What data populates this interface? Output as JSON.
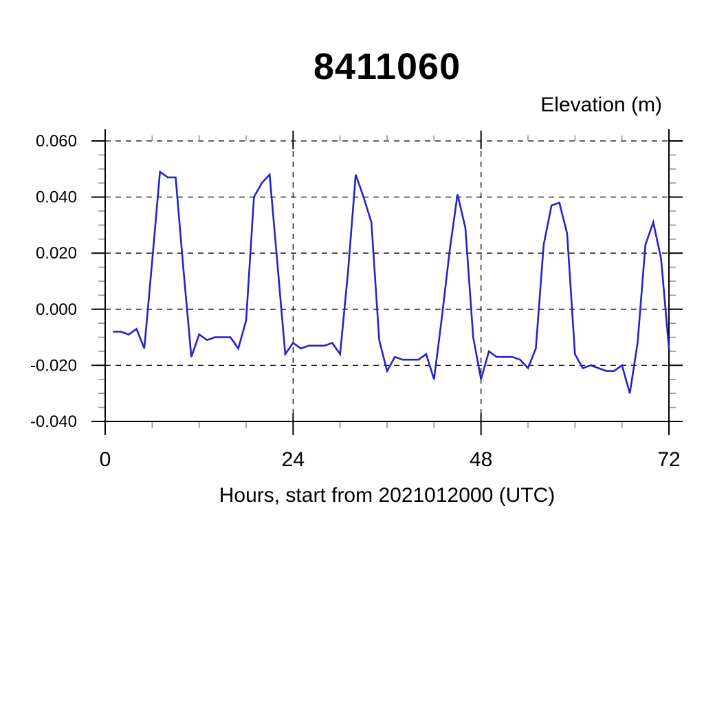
{
  "chart_data": {
    "type": "line",
    "title": "8411060",
    "ylabel": "Elevation (m)",
    "xlabel": "Hours, start from 2021012000 (UTC)",
    "legend": "none",
    "grid": "dashed-at-major-ticks",
    "line_color": "#2222cc",
    "axis_color": "#000000",
    "minor_tick_color": "#909090",
    "background_color": "#ffffff",
    "xlim": [
      0,
      72
    ],
    "ylim": [
      -0.04,
      0.06
    ],
    "x_ticks": [
      {
        "label": "0",
        "value": 0
      },
      {
        "label": "24",
        "value": 24
      },
      {
        "label": "48",
        "value": 48
      },
      {
        "label": "72",
        "value": 72
      }
    ],
    "x_minor_ticks": [
      6,
      12,
      18,
      30,
      36,
      42,
      54,
      60,
      66
    ],
    "y_ticks": [
      {
        "label": "0.060",
        "value": 0.06
      },
      {
        "label": "0.040",
        "value": 0.04
      },
      {
        "label": "0.020",
        "value": 0.02
      },
      {
        "label": "0.000",
        "value": 0.0
      },
      {
        "label": "-0.020",
        "value": -0.02
      },
      {
        "label": "-0.040",
        "value": -0.04
      }
    ],
    "y_minor_step": 0.005,
    "series": [
      {
        "name": "elevation",
        "x": [
          1,
          2,
          3,
          4,
          5,
          6,
          7,
          8,
          9,
          10,
          11,
          12,
          13,
          14,
          15,
          16,
          17,
          18,
          19,
          20,
          21,
          22,
          23,
          24,
          25,
          26,
          27,
          28,
          29,
          30,
          31,
          32,
          33,
          34,
          35,
          36,
          37,
          38,
          39,
          40,
          41,
          42,
          43,
          44,
          45,
          46,
          47,
          48,
          49,
          50,
          51,
          52,
          53,
          54,
          55,
          56,
          57,
          58,
          59,
          60,
          61,
          62,
          63,
          64,
          65,
          66,
          67,
          68,
          69,
          70,
          71,
          72
        ],
        "values": [
          -0.008,
          -0.008,
          -0.009,
          -0.007,
          -0.014,
          0.017,
          0.049,
          0.047,
          0.047,
          0.014,
          -0.017,
          -0.009,
          -0.011,
          -0.01,
          -0.01,
          -0.01,
          -0.014,
          -0.004,
          0.04,
          0.045,
          0.048,
          0.016,
          -0.016,
          -0.012,
          -0.014,
          -0.013,
          -0.013,
          -0.013,
          -0.012,
          -0.016,
          0.013,
          0.048,
          0.04,
          0.031,
          -0.011,
          -0.022,
          -0.017,
          -0.018,
          -0.018,
          -0.018,
          -0.016,
          -0.025,
          -0.003,
          0.021,
          0.041,
          0.029,
          -0.01,
          -0.025,
          -0.015,
          -0.017,
          -0.017,
          -0.017,
          -0.018,
          -0.021,
          -0.014,
          0.023,
          0.037,
          0.038,
          0.027,
          -0.016,
          -0.021,
          -0.02,
          -0.021,
          -0.022,
          -0.022,
          -0.02,
          -0.03,
          -0.012,
          0.023,
          0.031,
          0.018,
          -0.014
        ]
      }
    ]
  }
}
